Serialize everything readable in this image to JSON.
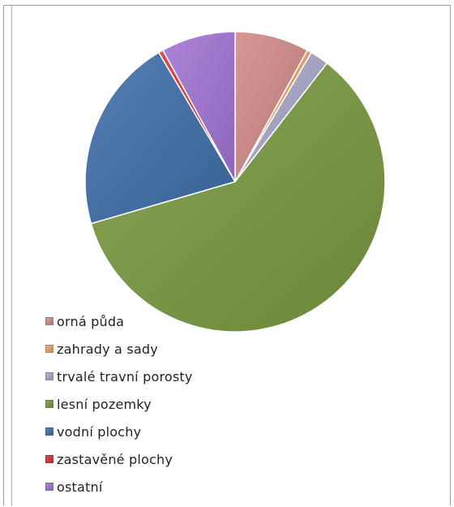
{
  "chart_data": {
    "type": "pie",
    "title": "",
    "legend_position": "bottom-left",
    "slices": [
      {
        "label": "orná půda",
        "value": 8.0,
        "color": "#d08a87"
      },
      {
        "label": "zahrady a sady",
        "value": 0.5,
        "color": "#e8a36a"
      },
      {
        "label": "trvalé travní porosty",
        "value": 2.0,
        "color": "#a9a6c8"
      },
      {
        "label": "lesní pozemky",
        "value": 60.0,
        "color": "#79993f"
      },
      {
        "label": "vodní plochy",
        "value": 21.0,
        "color": "#3f6ea8"
      },
      {
        "label": "zastavěné plochy",
        "value": 0.5,
        "color": "#d93030"
      },
      {
        "label": "ostatní",
        "value": 8.0,
        "color": "#a173d3"
      }
    ]
  }
}
